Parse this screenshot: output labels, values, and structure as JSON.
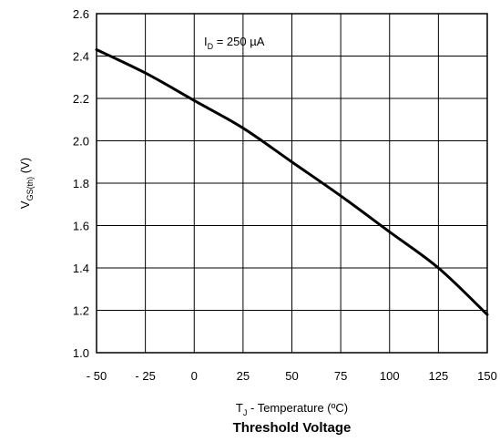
{
  "chart_data": {
    "type": "line",
    "title": "Threshold Voltage",
    "xlabel": {
      "main": "T",
      "sub": "J",
      "rest": " - Temperature (ºC)"
    },
    "ylabel": {
      "main": "V",
      "sub": "GS(th)",
      "rest": " (V)"
    },
    "xlim": [
      -50,
      150
    ],
    "ylim": [
      1.0,
      2.6
    ],
    "xticks": [
      -50,
      -25,
      0,
      25,
      50,
      75,
      100,
      125,
      150
    ],
    "xtick_labels": [
      "- 50",
      "- 25",
      "0",
      "25",
      "50",
      "75",
      "100",
      "125",
      "150"
    ],
    "yticks": [
      1.0,
      1.2,
      1.4,
      1.6,
      1.8,
      2.0,
      2.2,
      2.4,
      2.6
    ],
    "ytick_labels": [
      "1.0",
      "1.2",
      "1.4",
      "1.6",
      "1.8",
      "2.0",
      "2.2",
      "2.4",
      "2.6"
    ],
    "grid": true,
    "annotation": {
      "main": "I",
      "sub": "D",
      "rest": " = 250 µA",
      "x": 5,
      "y": 2.45
    },
    "series": [
      {
        "x": [
          -50,
          -25,
          0,
          25,
          50,
          75,
          100,
          125,
          150
        ],
        "y": [
          2.43,
          2.32,
          2.19,
          2.06,
          1.9,
          1.74,
          1.57,
          1.4,
          1.18
        ]
      }
    ]
  }
}
